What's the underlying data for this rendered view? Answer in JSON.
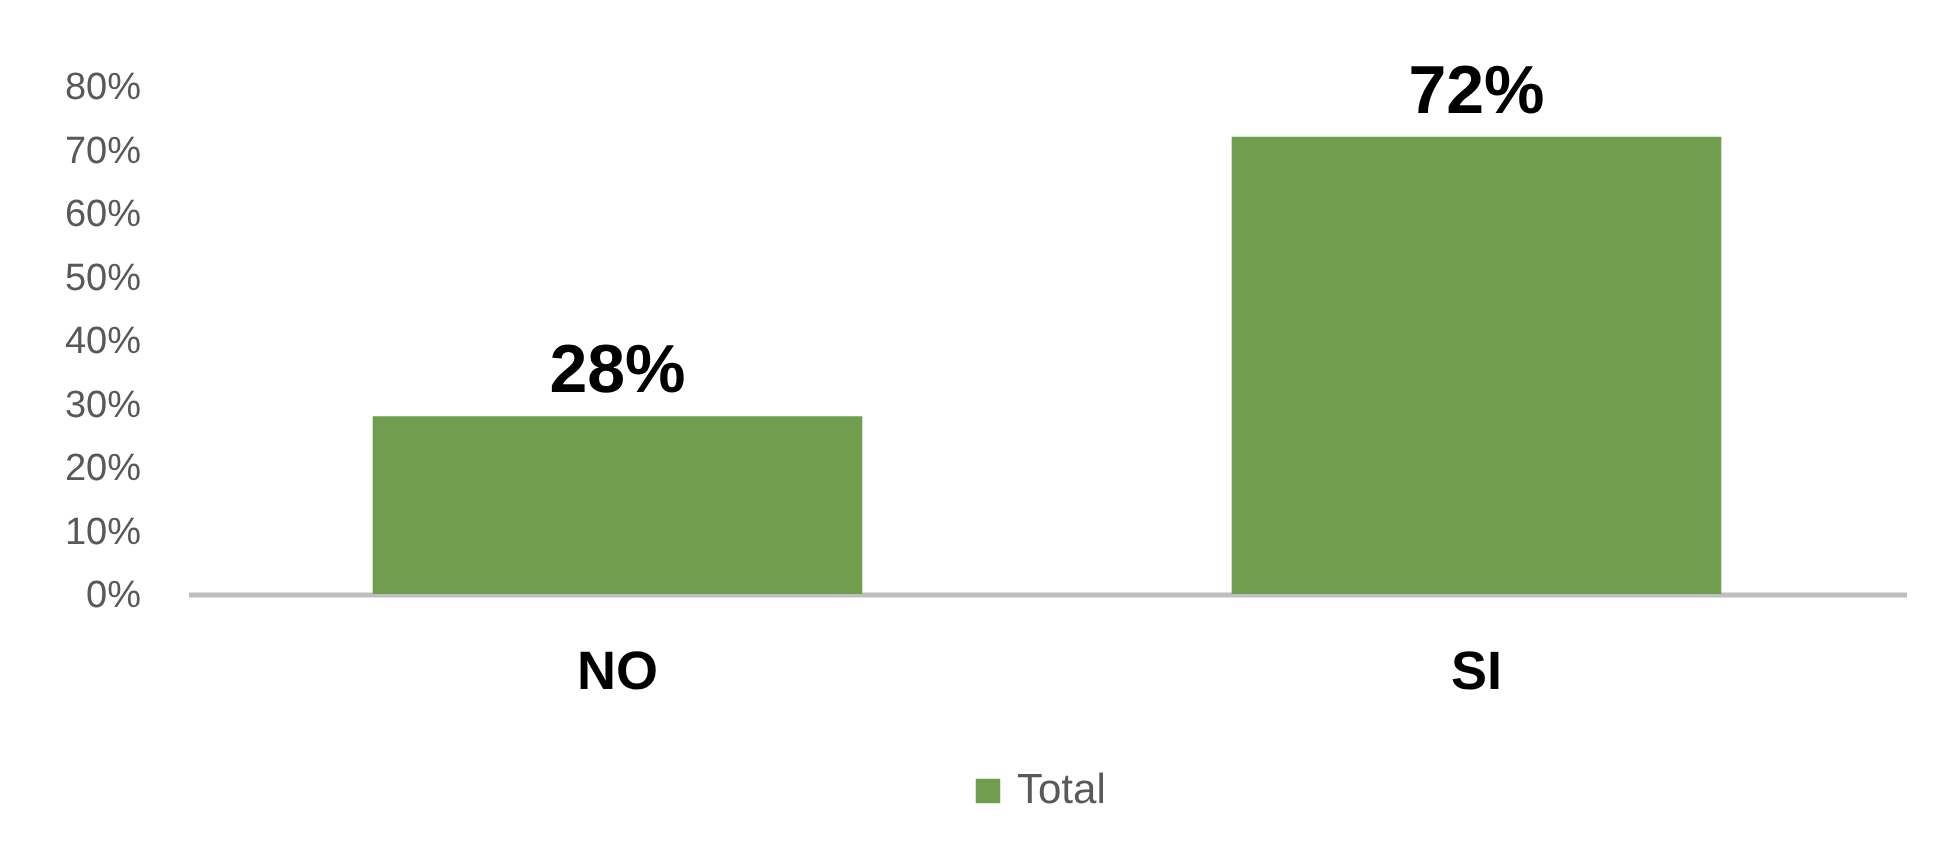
{
  "chart_data": {
    "type": "bar",
    "categories": [
      "NO",
      "SI"
    ],
    "series": [
      {
        "name": "Total",
        "color": "#6f9f4e",
        "values": [
          28,
          72
        ],
        "value_labels": [
          "28%",
          "72%"
        ]
      }
    ],
    "ylim": [
      0,
      80
    ],
    "yticks": [
      {
        "value": 0,
        "label": "0%"
      },
      {
        "value": 10,
        "label": "10%"
      },
      {
        "value": 20,
        "label": "20%"
      },
      {
        "value": 30,
        "label": "30%"
      },
      {
        "value": 40,
        "label": "40%"
      },
      {
        "value": 50,
        "label": "50%"
      },
      {
        "value": 60,
        "label": "60%"
      },
      {
        "value": 70,
        "label": "70%"
      },
      {
        "value": 80,
        "label": "80%"
      }
    ],
    "legend": "bottom"
  }
}
